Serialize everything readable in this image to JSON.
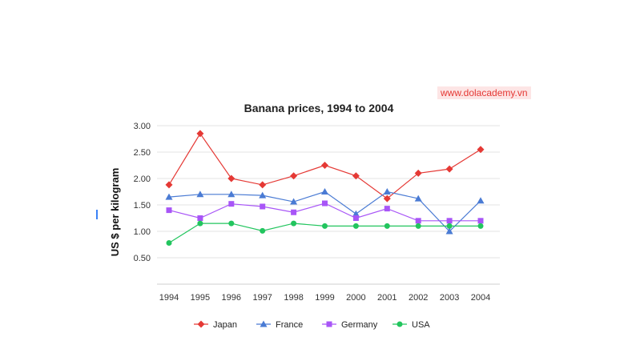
{
  "watermark": "www.dolacademy.vn",
  "chart_data": {
    "type": "line",
    "title": "Banana prices, 1994 to 2004",
    "xlabel": "",
    "ylabel": "US $ per kilogram",
    "x": [
      "1994",
      "1995",
      "1996",
      "1997",
      "1998",
      "1999",
      "2000",
      "2001",
      "2002",
      "2003",
      "2004"
    ],
    "ylim": [
      0,
      3.0
    ],
    "yticks": [
      "3.00",
      "2.50",
      "2.00",
      "1.50",
      "1.00",
      "0.50"
    ],
    "ytick_values": [
      3.0,
      2.5,
      2.0,
      1.5,
      1.0,
      0.5
    ],
    "grid": true,
    "legend_position": "bottom",
    "series": [
      {
        "name": "Japan",
        "color": "#e53935",
        "marker": "diamond",
        "values": [
          1.88,
          2.85,
          2.0,
          1.88,
          2.05,
          2.25,
          2.05,
          1.62,
          2.1,
          2.18,
          2.55
        ]
      },
      {
        "name": "France",
        "color": "#4a7bd4",
        "marker": "triangle",
        "values": [
          1.65,
          1.7,
          1.7,
          1.68,
          1.56,
          1.75,
          1.33,
          1.75,
          1.62,
          1.0,
          1.58
        ]
      },
      {
        "name": "Germany",
        "color": "#a855f7",
        "marker": "square",
        "values": [
          1.4,
          1.25,
          1.52,
          1.47,
          1.36,
          1.53,
          1.25,
          1.43,
          1.2,
          1.2,
          1.2
        ]
      },
      {
        "name": "USA",
        "color": "#22c55e",
        "marker": "circle",
        "values": [
          0.78,
          1.15,
          1.15,
          1.01,
          1.15,
          1.1,
          1.1,
          1.1,
          1.1,
          1.1,
          1.1
        ]
      }
    ]
  }
}
